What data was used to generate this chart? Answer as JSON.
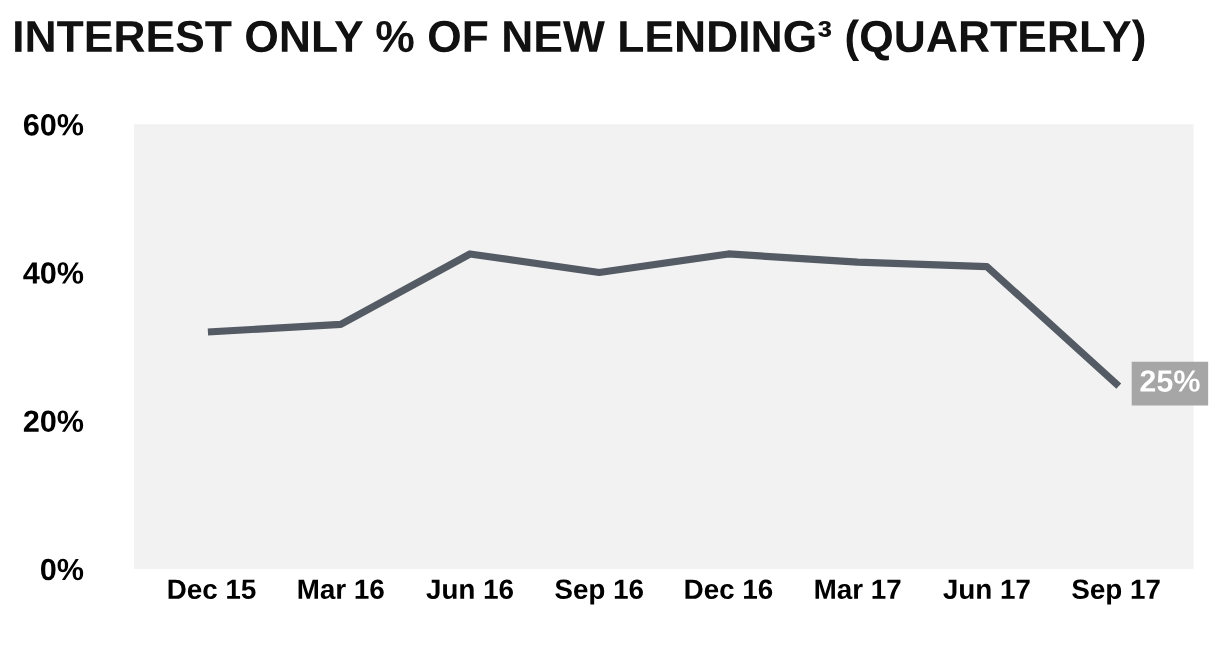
{
  "chart_data": {
    "type": "line",
    "title": "INTEREST ONLY % OF NEW LENDING³ (QUARTERLY)",
    "categories": [
      "Dec 15",
      "Mar 16",
      "Jun 16",
      "Sep 16",
      "Dec 16",
      "Mar 17",
      "Jun 17",
      "Sep 17"
    ],
    "series": [
      {
        "color": "#545b64",
        "values": [
          32,
          33,
          42.5,
          40,
          42.5,
          41.4,
          40.8,
          25
        ],
        "value_labels": [
          null,
          null,
          null,
          null,
          null,
          null,
          null,
          "25%"
        ]
      }
    ],
    "ylim": [
      0,
      60
    ],
    "yticks": [
      {
        "value": 0,
        "label": "0%"
      },
      {
        "value": 20,
        "label": "20%"
      },
      {
        "value": 40,
        "label": "40%"
      },
      {
        "value": 60,
        "label": "60%"
      }
    ],
    "grid": false,
    "legend": false,
    "marker": "none",
    "line_style": "solid"
  }
}
